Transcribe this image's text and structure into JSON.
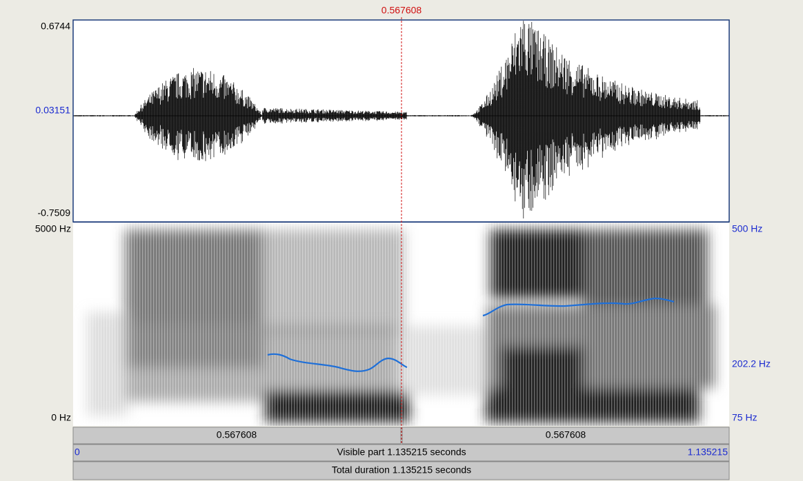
{
  "cursor": {
    "time": "0.567608"
  },
  "waveform": {
    "y_max": "0.6744",
    "y_mid": "0.03151",
    "y_min": "-0.7509"
  },
  "spectrogram": {
    "freq_max": "5000 Hz",
    "freq_min": "0 Hz"
  },
  "pitch": {
    "max": "500 Hz",
    "value": "202.2 Hz",
    "min": "75 Hz"
  },
  "bars": {
    "left_segment": "0.567608",
    "right_segment": "0.567608",
    "visible_start": "0",
    "visible_part": "Visible part 1.135215 seconds",
    "visible_end": "1.135215",
    "total_duration": "Total duration 1.135215 seconds"
  }
}
